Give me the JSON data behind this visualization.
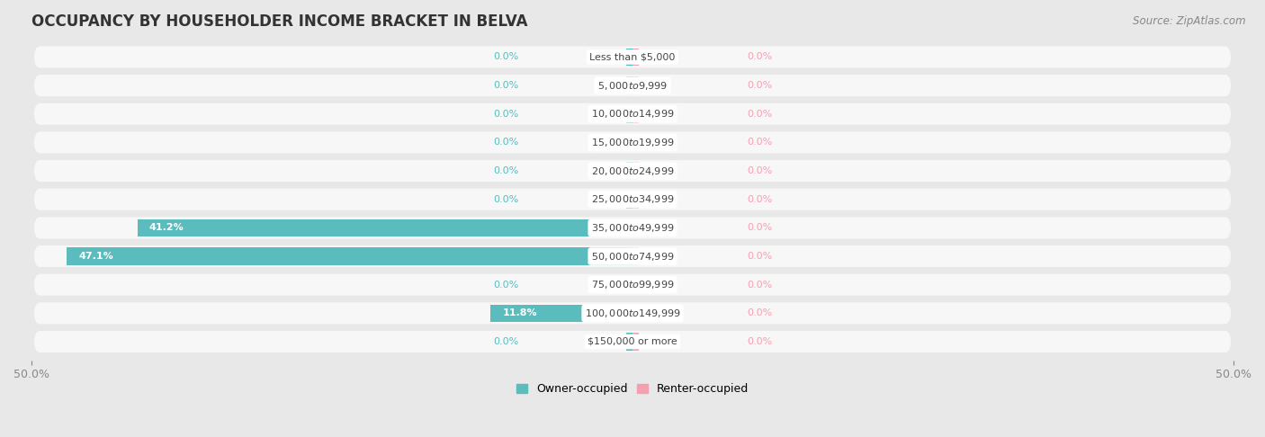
{
  "title": "OCCUPANCY BY HOUSEHOLDER INCOME BRACKET IN BELVA",
  "source": "Source: ZipAtlas.com",
  "categories": [
    "Less than $5,000",
    "$5,000 to $9,999",
    "$10,000 to $14,999",
    "$15,000 to $19,999",
    "$20,000 to $24,999",
    "$25,000 to $34,999",
    "$35,000 to $49,999",
    "$50,000 to $74,999",
    "$75,000 to $99,999",
    "$100,000 to $149,999",
    "$150,000 or more"
  ],
  "owner_values": [
    0.0,
    0.0,
    0.0,
    0.0,
    0.0,
    0.0,
    41.2,
    47.1,
    0.0,
    11.8,
    0.0
  ],
  "renter_values": [
    0.0,
    0.0,
    0.0,
    0.0,
    0.0,
    0.0,
    0.0,
    0.0,
    0.0,
    0.0,
    0.0
  ],
  "owner_color": "#5bbcbe",
  "renter_color": "#f4a0b0",
  "label_color_owner": "#5bbcbe",
  "label_color_renter": "#f4a0b0",
  "bar_height": 0.62,
  "xlim": 50.0,
  "background_color": "#e8e8e8",
  "bar_background_color": "#f7f7f7",
  "title_fontsize": 12,
  "source_fontsize": 8.5,
  "tick_fontsize": 9,
  "label_fontsize": 8,
  "cat_label_fontsize": 8
}
